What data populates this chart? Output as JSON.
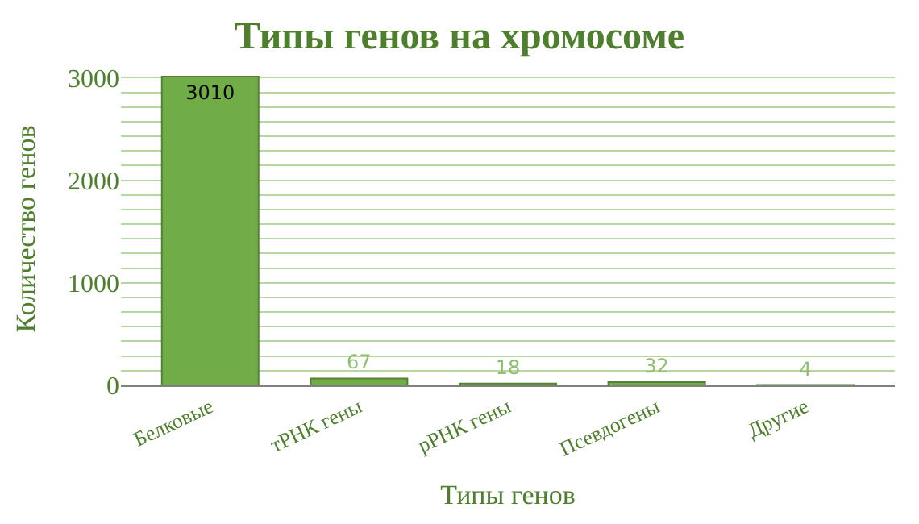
{
  "chart_data": {
    "type": "bar",
    "title": "Типы генов на хромосоме",
    "xlabel": "Типы генов",
    "ylabel": "Количество генов",
    "categories": [
      "Белковые",
      "тРНК гены",
      "рРНК гены",
      "Псевдогены",
      "Другие"
    ],
    "values": [
      3010,
      67,
      18,
      32,
      4
    ],
    "color": "#70ad47",
    "ylim": [
      0,
      3050
    ],
    "yticks": [
      0,
      {
        "value": 143,
        "label": null
      },
      {
        "value": 286,
        "label": null
      },
      {
        "value": 429,
        "label": null
      },
      {
        "value": 571,
        "label": null
      },
      {
        "value": 714,
        "label": null
      },
      {
        "value": 857,
        "label": null
      },
      1000,
      {
        "value": 1143,
        "label": null
      },
      {
        "value": 1286,
        "label": null
      },
      {
        "value": 1429,
        "label": null
      },
      {
        "value": 1571,
        "label": null
      },
      {
        "value": 1714,
        "label": null
      },
      {
        "value": 1857,
        "label": null
      },
      2000,
      {
        "value": 2143,
        "label": null
      },
      {
        "value": 2286,
        "label": null
      },
      {
        "value": 2429,
        "label": null
      },
      {
        "value": 2571,
        "label": null
      },
      {
        "value": 2714,
        "label": null
      },
      {
        "value": 2857,
        "label": null
      },
      3000
    ],
    "grid": "y",
    "data_labels": true
  }
}
